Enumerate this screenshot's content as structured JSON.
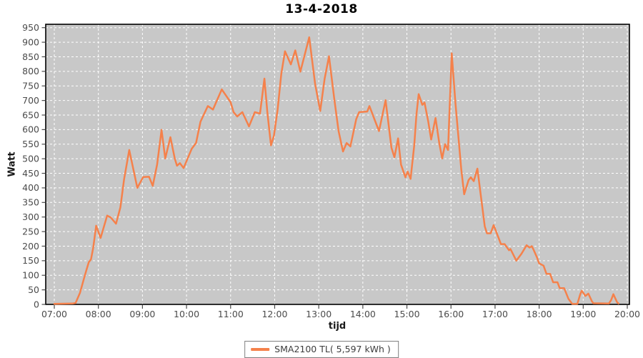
{
  "chart_data": {
    "type": "line",
    "title": "13-4-2018",
    "xlabel": "tijd",
    "ylabel": "Watt",
    "x_ticks": [
      "07:00",
      "08:00",
      "09:00",
      "10:00",
      "11:00",
      "12:00",
      "13:00",
      "14:00",
      "15:00",
      "16:00",
      "17:00",
      "18:00",
      "19:00",
      "20:00"
    ],
    "y_min": 0,
    "y_max": 950,
    "y_step": 50,
    "grid": true,
    "legend_position": "bottom",
    "colors": {
      "plot_bg": "#c8c8c8",
      "grid": "#ffffff",
      "plot_border": "#000000",
      "tick_text": "#4b4b4b",
      "axis_title_text": "#1a1a1a",
      "series": "#f5814b",
      "legend_border": "#7f7f7f",
      "legend_text": "#3d3d3d"
    },
    "series": [
      {
        "name": "SMA2100 TL( 5,597 kWh )",
        "color": "#f5814b",
        "points": [
          [
            "07:00",
            2
          ],
          [
            "07:25",
            3
          ],
          [
            "07:29",
            5
          ],
          [
            "07:35",
            40
          ],
          [
            "07:40",
            85
          ],
          [
            "07:44",
            120
          ],
          [
            "07:47",
            145
          ],
          [
            "07:50",
            155
          ],
          [
            "07:53",
            195
          ],
          [
            "07:57",
            270
          ],
          [
            "08:03",
            228
          ],
          [
            "08:12",
            305
          ],
          [
            "08:17",
            298
          ],
          [
            "08:24",
            277
          ],
          [
            "08:30",
            333
          ],
          [
            "08:35",
            430
          ],
          [
            "08:42",
            530
          ],
          [
            "08:53",
            400
          ],
          [
            "09:01",
            437
          ],
          [
            "09:09",
            438
          ],
          [
            "09:14",
            407
          ],
          [
            "09:20",
            480
          ],
          [
            "09:26",
            599
          ],
          [
            "09:31",
            501
          ],
          [
            "09:38",
            574
          ],
          [
            "09:44",
            501
          ],
          [
            "09:47",
            476
          ],
          [
            "09:51",
            485
          ],
          [
            "09:56",
            468
          ],
          [
            "10:07",
            534
          ],
          [
            "10:13",
            554
          ],
          [
            "10:19",
            627
          ],
          [
            "10:29",
            681
          ],
          [
            "10:36",
            669
          ],
          [
            "10:48",
            738
          ],
          [
            "11:00",
            694
          ],
          [
            "11:04",
            660
          ],
          [
            "11:09",
            645
          ],
          [
            "11:16",
            660
          ],
          [
            "11:25",
            611
          ],
          [
            "11:33",
            660
          ],
          [
            "11:40",
            655
          ],
          [
            "11:46",
            775
          ],
          [
            "11:50",
            660
          ],
          [
            "11:55",
            546
          ],
          [
            "11:59",
            579
          ],
          [
            "12:04",
            669
          ],
          [
            "12:09",
            791
          ],
          [
            "12:14",
            869
          ],
          [
            "12:22",
            824
          ],
          [
            "12:28",
            872
          ],
          [
            "12:35",
            799
          ],
          [
            "12:47",
            917
          ],
          [
            "12:55",
            758
          ],
          [
            "13:02",
            664
          ],
          [
            "13:08",
            775
          ],
          [
            "13:14",
            852
          ],
          [
            "13:21",
            709
          ],
          [
            "13:27",
            595
          ],
          [
            "13:33",
            525
          ],
          [
            "13:38",
            554
          ],
          [
            "13:43",
            542
          ],
          [
            "13:51",
            636
          ],
          [
            "13:55",
            660
          ],
          [
            "14:06",
            662
          ],
          [
            "14:09",
            681
          ],
          [
            "14:17",
            628
          ],
          [
            "14:22",
            595
          ],
          [
            "14:31",
            701
          ],
          [
            "14:39",
            538
          ],
          [
            "14:43",
            505
          ],
          [
            "14:48",
            570
          ],
          [
            "14:52",
            480
          ],
          [
            "14:58",
            436
          ],
          [
            "15:01",
            456
          ],
          [
            "15:05",
            431
          ],
          [
            "15:10",
            546
          ],
          [
            "15:13",
            652
          ],
          [
            "15:16",
            722
          ],
          [
            "15:21",
            685
          ],
          [
            "15:24",
            693
          ],
          [
            "15:29",
            628
          ],
          [
            "15:33",
            566
          ],
          [
            "15:39",
            640
          ],
          [
            "15:44",
            554
          ],
          [
            "15:48",
            501
          ],
          [
            "15:52",
            550
          ],
          [
            "15:56",
            530
          ],
          [
            "16:01",
            862
          ],
          [
            "16:06",
            693
          ],
          [
            "16:10",
            579
          ],
          [
            "16:14",
            464
          ],
          [
            "16:18",
            378
          ],
          [
            "16:24",
            427
          ],
          [
            "16:27",
            436
          ],
          [
            "16:31",
            423
          ],
          [
            "16:36",
            466
          ],
          [
            "16:41",
            366
          ],
          [
            "16:46",
            268
          ],
          [
            "16:49",
            244
          ],
          [
            "16:54",
            244
          ],
          [
            "16:58",
            272
          ],
          [
            "17:05",
            227
          ],
          [
            "17:08",
            207
          ],
          [
            "17:13",
            207
          ],
          [
            "17:19",
            186
          ],
          [
            "17:21",
            190
          ],
          [
            "17:29",
            150
          ],
          [
            "17:36",
            174
          ],
          [
            "17:43",
            203
          ],
          [
            "17:47",
            195
          ],
          [
            "17:50",
            200
          ],
          [
            "17:52",
            190
          ],
          [
            "17:57",
            162
          ],
          [
            "18:00",
            141
          ],
          [
            "18:06",
            133
          ],
          [
            "18:10",
            105
          ],
          [
            "18:15",
            105
          ],
          [
            "18:19",
            76
          ],
          [
            "18:25",
            76
          ],
          [
            "18:28",
            56
          ],
          [
            "18:34",
            56
          ],
          [
            "18:40",
            19
          ],
          [
            "18:45",
            2
          ],
          [
            "18:52",
            2
          ],
          [
            "18:56",
            35
          ],
          [
            "18:58",
            47
          ],
          [
            "19:03",
            29
          ],
          [
            "19:07",
            37
          ],
          [
            "19:12",
            10
          ],
          [
            "19:14",
            4
          ],
          [
            "19:35",
            3
          ],
          [
            "19:38",
            15
          ],
          [
            "19:41",
            35
          ],
          [
            "19:46",
            8
          ],
          [
            "19:48",
            3
          ]
        ]
      }
    ]
  }
}
